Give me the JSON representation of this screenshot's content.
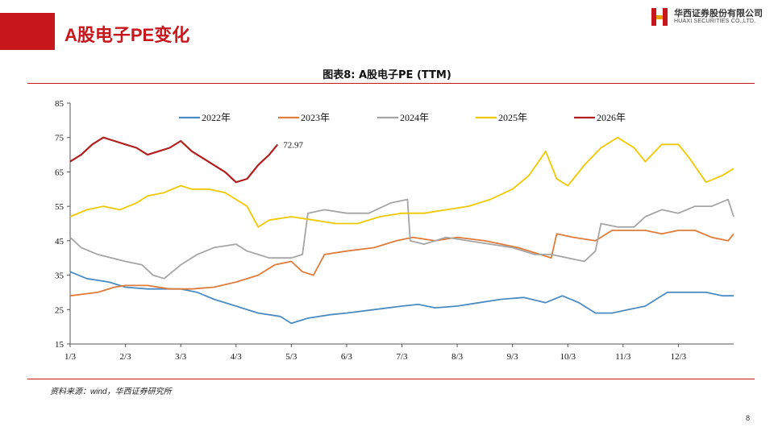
{
  "header": {
    "title": "A股电子PE变化"
  },
  "logo": {
    "name_cn": "华西证券股份有限公司",
    "name_en": "HUAXI SECURITIES CO.,LTD."
  },
  "chart_title": "图表8: A股电子PE (TTM)",
  "source": "资料来源：wind，华西证券研究所",
  "page_number": "8",
  "colors": {
    "brand": "#c8161d"
  },
  "chart_data": {
    "type": "line",
    "title": "图表8: A股电子PE (TTM)",
    "xlabel": "",
    "ylabel": "",
    "x_ticks": [
      "1/3",
      "2/3",
      "3/3",
      "4/3",
      "5/3",
      "6/3",
      "7/3",
      "8/3",
      "9/3",
      "10/3",
      "11/3",
      "12/3"
    ],
    "xlim": [
      0,
      12
    ],
    "ylim": [
      15,
      85
    ],
    "y_ticks": [
      15,
      25,
      35,
      45,
      55,
      65,
      75,
      85
    ],
    "grid": false,
    "legend_position": "top",
    "annotation": {
      "text": "72.97",
      "series": "2026年",
      "x": 3.4,
      "y": 72.97
    },
    "series": [
      {
        "name": "2022年",
        "color": "#4a8bc4",
        "points": [
          [
            0,
            36
          ],
          [
            0.3,
            34
          ],
          [
            0.7,
            33
          ],
          [
            1,
            31.5
          ],
          [
            1.4,
            31
          ],
          [
            2,
            31
          ],
          [
            2.3,
            30
          ],
          [
            2.6,
            28
          ],
          [
            3,
            26
          ],
          [
            3.4,
            24
          ],
          [
            3.8,
            23
          ],
          [
            4,
            21
          ],
          [
            4.3,
            22.5
          ],
          [
            4.7,
            23.5
          ],
          [
            5,
            24
          ],
          [
            5.5,
            25
          ],
          [
            6,
            26
          ],
          [
            6.3,
            26.5
          ],
          [
            6.6,
            25.5
          ],
          [
            7,
            26
          ],
          [
            7.4,
            27
          ],
          [
            7.8,
            28
          ],
          [
            8.2,
            28.5
          ],
          [
            8.6,
            27
          ],
          [
            8.9,
            29
          ],
          [
            9.2,
            27
          ],
          [
            9.5,
            24
          ],
          [
            9.8,
            24
          ],
          [
            10.1,
            25
          ],
          [
            10.4,
            26
          ],
          [
            10.8,
            30
          ],
          [
            11.1,
            30
          ],
          [
            11.5,
            30
          ],
          [
            11.8,
            29
          ],
          [
            12,
            29
          ]
        ]
      },
      {
        "name": "2023年",
        "color": "#e07b39",
        "points": [
          [
            0,
            29
          ],
          [
            0.5,
            30
          ],
          [
            0.8,
            31.5
          ],
          [
            1,
            32
          ],
          [
            1.4,
            32
          ],
          [
            1.8,
            31
          ],
          [
            2.2,
            31
          ],
          [
            2.6,
            31.5
          ],
          [
            3,
            33
          ],
          [
            3.4,
            35
          ],
          [
            3.7,
            38
          ],
          [
            4,
            39
          ],
          [
            4.2,
            36
          ],
          [
            4.4,
            35
          ],
          [
            4.6,
            41
          ],
          [
            5,
            42
          ],
          [
            5.5,
            43
          ],
          [
            5.9,
            45
          ],
          [
            6.2,
            46
          ],
          [
            6.6,
            45
          ],
          [
            7,
            46
          ],
          [
            7.5,
            45
          ],
          [
            7.8,
            44
          ],
          [
            8.1,
            43
          ],
          [
            8.5,
            41
          ],
          [
            8.7,
            40
          ],
          [
            8.8,
            47
          ],
          [
            9.1,
            46
          ],
          [
            9.5,
            45
          ],
          [
            9.8,
            48
          ],
          [
            10.1,
            48
          ],
          [
            10.4,
            48
          ],
          [
            10.7,
            47
          ],
          [
            11,
            48
          ],
          [
            11.3,
            48
          ],
          [
            11.6,
            46
          ],
          [
            11.9,
            45
          ],
          [
            12,
            47
          ]
        ]
      },
      {
        "name": "2024年",
        "color": "#a5a5a5",
        "points": [
          [
            0,
            46
          ],
          [
            0.2,
            43
          ],
          [
            0.5,
            41
          ],
          [
            1,
            39
          ],
          [
            1.3,
            38
          ],
          [
            1.5,
            35
          ],
          [
            1.7,
            34
          ],
          [
            2,
            38
          ],
          [
            2.3,
            41
          ],
          [
            2.6,
            43
          ],
          [
            3,
            44
          ],
          [
            3.2,
            42
          ],
          [
            3.4,
            41
          ],
          [
            3.6,
            40
          ],
          [
            3.8,
            40
          ],
          [
            4,
            40
          ],
          [
            4.2,
            41
          ],
          [
            4.3,
            53
          ],
          [
            4.6,
            54
          ],
          [
            5,
            53
          ],
          [
            5.4,
            53
          ],
          [
            5.8,
            56
          ],
          [
            6.1,
            57
          ],
          [
            6.15,
            45
          ],
          [
            6.4,
            44
          ],
          [
            6.8,
            46
          ],
          [
            7.2,
            45
          ],
          [
            7.6,
            44
          ],
          [
            8,
            43
          ],
          [
            8.4,
            41
          ],
          [
            8.7,
            41
          ],
          [
            9,
            40
          ],
          [
            9.3,
            39
          ],
          [
            9.5,
            42
          ],
          [
            9.6,
            50
          ],
          [
            9.9,
            49
          ],
          [
            10.2,
            49
          ],
          [
            10.4,
            52
          ],
          [
            10.7,
            54
          ],
          [
            11,
            53
          ],
          [
            11.3,
            55
          ],
          [
            11.6,
            55
          ],
          [
            11.9,
            57
          ],
          [
            12,
            52
          ]
        ]
      },
      {
        "name": "2025年",
        "color": "#f0c800",
        "points": [
          [
            0,
            52
          ],
          [
            0.3,
            54
          ],
          [
            0.6,
            55
          ],
          [
            0.9,
            54
          ],
          [
            1.2,
            56
          ],
          [
            1.4,
            58
          ],
          [
            1.7,
            59
          ],
          [
            2,
            61
          ],
          [
            2.2,
            60
          ],
          [
            2.5,
            60
          ],
          [
            2.8,
            59
          ],
          [
            3,
            57
          ],
          [
            3.2,
            55
          ],
          [
            3.4,
            49
          ],
          [
            3.6,
            51
          ],
          [
            4,
            52
          ],
          [
            4.4,
            51
          ],
          [
            4.8,
            50
          ],
          [
            5.2,
            50
          ],
          [
            5.6,
            52
          ],
          [
            6,
            53
          ],
          [
            6.4,
            53
          ],
          [
            6.8,
            54
          ],
          [
            7.2,
            55
          ],
          [
            7.6,
            57
          ],
          [
            8,
            60
          ],
          [
            8.3,
            64
          ],
          [
            8.6,
            71
          ],
          [
            8.8,
            63
          ],
          [
            9,
            61
          ],
          [
            9.3,
            67
          ],
          [
            9.6,
            72
          ],
          [
            9.9,
            75
          ],
          [
            10.2,
            72
          ],
          [
            10.4,
            68
          ],
          [
            10.7,
            73
          ],
          [
            11,
            73
          ],
          [
            11.2,
            69
          ],
          [
            11.5,
            62
          ],
          [
            11.8,
            64
          ],
          [
            12,
            66
          ]
        ]
      },
      {
        "name": "2026年",
        "color": "#b01e1e",
        "points": [
          [
            0,
            68
          ],
          [
            0.2,
            70
          ],
          [
            0.4,
            73
          ],
          [
            0.6,
            75
          ],
          [
            0.8,
            74
          ],
          [
            1,
            73
          ],
          [
            1.2,
            72
          ],
          [
            1.4,
            70
          ],
          [
            1.6,
            71
          ],
          [
            1.8,
            72
          ],
          [
            2,
            74
          ],
          [
            2.2,
            71
          ],
          [
            2.4,
            69
          ],
          [
            2.6,
            67
          ],
          [
            2.8,
            65
          ],
          [
            3,
            62
          ],
          [
            3.2,
            63
          ],
          [
            3.4,
            67
          ],
          [
            3.6,
            70
          ],
          [
            3.75,
            72.97
          ]
        ]
      }
    ]
  }
}
